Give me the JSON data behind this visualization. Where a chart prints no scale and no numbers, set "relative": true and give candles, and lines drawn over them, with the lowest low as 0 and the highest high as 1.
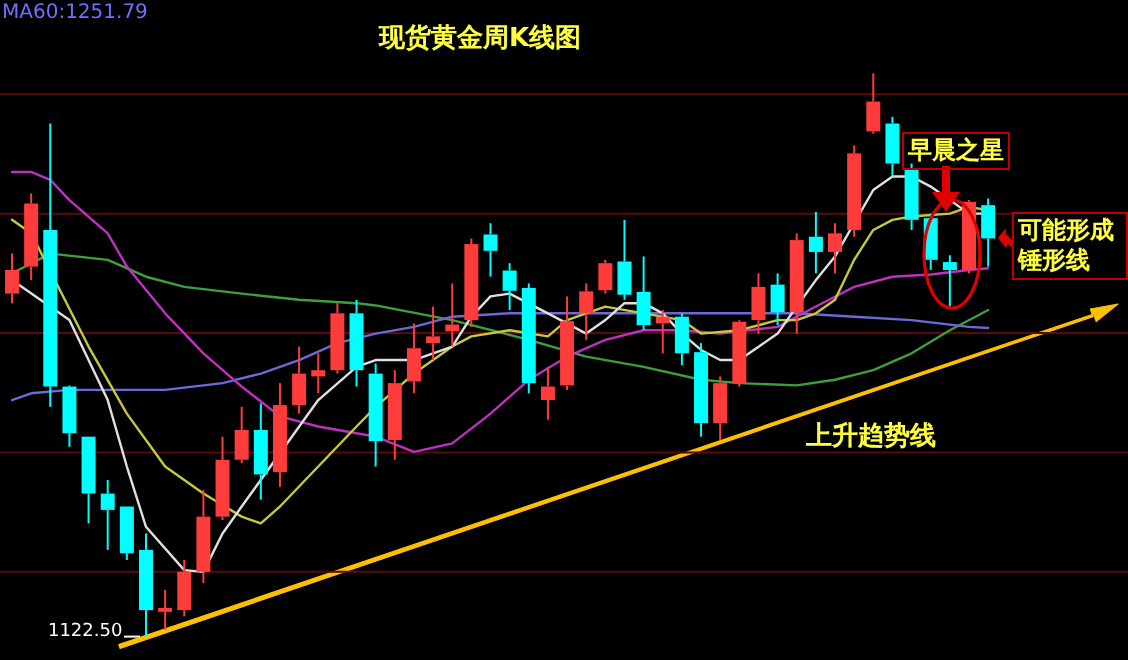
{
  "chart_data": {
    "type": "candlestick",
    "title": "现货黄金周K线图",
    "relative": true,
    "ref_lines": [
      {
        "axis": "y",
        "value": 0.963,
        "color": "#5a0a0a"
      },
      {
        "axis": "y",
        "value": 0.751,
        "color": "#5a0a0a"
      },
      {
        "axis": "y",
        "value": 0.539,
        "color": "#5a0a0a"
      },
      {
        "axis": "y",
        "value": 0.327,
        "color": "#5a0a0a"
      },
      {
        "axis": "y",
        "value": 0.115,
        "color": "#5a0a0a"
      }
    ],
    "categories": [
      null,
      null,
      null,
      null,
      null,
      null,
      null,
      null,
      null,
      null,
      null,
      null,
      null,
      null,
      null,
      null,
      null,
      null,
      null,
      null,
      null,
      null,
      null,
      null,
      null,
      null,
      null,
      null,
      null,
      null,
      null,
      null,
      null,
      null,
      null,
      null,
      null,
      null,
      null,
      null,
      null,
      null,
      null,
      null,
      null,
      null,
      null,
      null,
      null,
      null,
      null,
      null
    ],
    "ohlc": [
      [
        0.609,
        0.68,
        0.592,
        0.651
      ],
      [
        0.657,
        0.787,
        0.633,
        0.769
      ],
      [
        0.722,
        0.911,
        0.408,
        0.444
      ],
      [
        0.444,
        0.446,
        0.337,
        0.361
      ],
      [
        0.355,
        0.355,
        0.201,
        0.254
      ],
      [
        0.254,
        0.278,
        0.154,
        0.225
      ],
      [
        0.231,
        0.231,
        0.136,
        0.148
      ],
      [
        0.154,
        0.183,
        0,
        0.047
      ],
      [
        0.044,
        0.083,
        0.012,
        0.051
      ],
      [
        0.047,
        0.136,
        0.036,
        0.115
      ],
      [
        0.115,
        0.26,
        0.095,
        0.213
      ],
      [
        0.213,
        0.355,
        0.207,
        0.314
      ],
      [
        0.314,
        0.408,
        0.308,
        0.367
      ],
      [
        0.367,
        0.414,
        0.243,
        0.288
      ],
      [
        0.292,
        0.45,
        0.266,
        0.411
      ],
      [
        0.411,
        0.515,
        0.396,
        0.467
      ],
      [
        0.462,
        0.503,
        0.432,
        0.473
      ],
      [
        0.473,
        0.592,
        0.467,
        0.574
      ],
      [
        0.574,
        0.598,
        0.444,
        0.473
      ],
      [
        0.467,
        0.485,
        0.302,
        0.347
      ],
      [
        0.349,
        0.473,
        0.314,
        0.45
      ],
      [
        0.453,
        0.556,
        0.432,
        0.512
      ],
      [
        0.521,
        0.586,
        0.491,
        0.533
      ],
      [
        0.542,
        0.627,
        0.515,
        0.554
      ],
      [
        0.562,
        0.707,
        0.55,
        0.697
      ],
      [
        0.714,
        0.734,
        0.639,
        0.685
      ],
      [
        0.65,
        0.663,
        0.58,
        0.614
      ],
      [
        0.619,
        0.627,
        0.432,
        0.45
      ],
      [
        0.42,
        0.479,
        0.385,
        0.444
      ],
      [
        0.446,
        0.604,
        0.438,
        0.56
      ],
      [
        0.574,
        0.627,
        0.527,
        0.613
      ],
      [
        0.615,
        0.669,
        0.609,
        0.663
      ],
      [
        0.666,
        0.74,
        0.598,
        0.607
      ],
      [
        0.612,
        0.675,
        0.544,
        0.553
      ],
      [
        0.556,
        0.58,
        0.503,
        0.568
      ],
      [
        0.568,
        0.574,
        0.482,
        0.503
      ],
      [
        0.505,
        0.521,
        0.355,
        0.379
      ],
      [
        0.379,
        0.462,
        0.349,
        0.45
      ],
      [
        0.45,
        0.562,
        0.444,
        0.559
      ],
      [
        0.562,
        0.645,
        0.538,
        0.621
      ],
      [
        0.625,
        0.645,
        0.553,
        0.576
      ],
      [
        0.576,
        0.716,
        0.538,
        0.704
      ],
      [
        0.71,
        0.754,
        0.645,
        0.683
      ],
      [
        0.683,
        0.734,
        0.645,
        0.716
      ],
      [
        0.722,
        0.872,
        0.71,
        0.858
      ],
      [
        0.897,
        1.0,
        0.893,
        0.95
      ],
      [
        0.911,
        0.923,
        0.817,
        0.84
      ],
      [
        0.831,
        0.84,
        0.722,
        0.74
      ],
      [
        0.743,
        0.751,
        0.651,
        0.669
      ],
      [
        0.665,
        0.677,
        0.586,
        0.651
      ],
      [
        0.651,
        0.775,
        0.645,
        0.772
      ],
      [
        0.766,
        0.778,
        0.657,
        0.707
      ]
    ],
    "colors": [
      "#ff3c3c",
      "#ff3c3c",
      "#00ffff",
      "#00ffff",
      "#00ffff",
      "#00ffff",
      "#00ffff",
      "#00ffff",
      "#ff3c3c",
      "#ff3c3c",
      "#ff3c3c",
      "#ff3c3c",
      "#ff3c3c",
      "#00ffff",
      "#ff3c3c",
      "#ff3c3c",
      "#ff3c3c",
      "#ff3c3c",
      "#00ffff",
      "#00ffff",
      "#ff3c3c",
      "#ff3c3c",
      "#ff3c3c",
      "#ff3c3c",
      "#ff3c3c",
      "#00ffff",
      "#00ffff",
      "#00ffff",
      "#ff3c3c",
      "#ff3c3c",
      "#ff3c3c",
      "#ff3c3c",
      "#00ffff",
      "#00ffff",
      "#ff3c3c",
      "#00ffff",
      "#00ffff",
      "#ff3c3c",
      "#ff3c3c",
      "#ff3c3c",
      "#00ffff",
      "#ff3c3c",
      "#00ffff",
      "#ff3c3c",
      "#ff3c3c",
      "#ff3c3c",
      "#00ffff",
      "#00ffff",
      "#00ffff",
      "#00ffff",
      "#ff3c3c",
      "#00ffff"
    ],
    "series": [
      {
        "type": "line",
        "color": "#3f9f3f",
        "values": [
          0.645,
          null,
          0.68,
          null,
          null,
          0.669,
          null,
          0.639,
          null,
          0.621,
          null,
          null,
          0.609,
          null,
          null,
          0.598,
          null,
          null,
          0.592,
          0.588,
          null,
          null,
          null,
          0.562,
          null,
          null,
          null,
          0.527,
          null,
          null,
          0.497,
          null,
          null,
          0.479,
          null,
          null,
          0.456,
          null,
          0.45,
          null,
          null,
          0.446,
          null,
          0.456,
          null,
          0.473,
          null,
          0.503,
          null,
          0.544,
          null,
          0.58
        ]
      },
      {
        "type": "line",
        "color": "#6a6ad8",
        "values": [
          0.42,
          0.432,
          null,
          0.438,
          null,
          null,
          0.438,
          null,
          0.438,
          null,
          null,
          0.45,
          null,
          0.467,
          null,
          0.491,
          null,
          0.521,
          null,
          0.538,
          null,
          0.55,
          null,
          0.568,
          null,
          null,
          0.574,
          null,
          null,
          0.574,
          null,
          null,
          0.574,
          null,
          null,
          0.574,
          null,
          null,
          0.574,
          null,
          null,
          0.574,
          null,
          null,
          0.568,
          null,
          null,
          0.562,
          null,
          null,
          0.55,
          0.548
        ]
      },
      {
        "type": "line",
        "color": "#c030c0",
        "values": [
          0.825,
          0.825,
          0.811,
          0.775,
          null,
          0.716,
          0.657,
          null,
          0.574,
          null,
          0.503,
          null,
          0.444,
          null,
          0.391,
          null,
          0.373,
          null,
          0.361,
          0.355,
          null,
          0.328,
          null,
          0.343,
          null,
          0.396,
          null,
          0.456,
          null,
          0.497,
          null,
          0.527,
          null,
          0.544,
          null,
          0.544,
          null,
          0.538,
          0.542,
          null,
          0.55,
          null,
          0.586,
          null,
          0.621,
          null,
          0.639,
          null,
          0.643,
          null,
          0.651,
          0.654
        ]
      },
      {
        "type": "line",
        "color": "#c8c83c",
        "values": [
          0.74,
          0.716,
          null,
          null,
          0.515,
          null,
          0.396,
          null,
          0.302,
          null,
          0.254,
          null,
          0.213,
          0.201,
          0.231,
          null,
          0.302,
          null,
          0.373,
          0.408,
          null,
          0.467,
          null,
          0.515,
          0.533,
          null,
          0.544,
          null,
          0.533,
          0.562,
          null,
          0.586,
          null,
          null,
          null,
          0.562,
          0.538,
          null,
          0.544,
          null,
          0.562,
          0.562,
          0.574,
          0.598,
          0.669,
          0.722,
          0.74,
          0.746,
          null,
          0.751,
          0.763,
          0.757
        ]
      },
      {
        "type": "line",
        "color": "#e0e0e0",
        "values": [
          0.633,
          null,
          null,
          0.562,
          null,
          0.42,
          0.302,
          0.195,
          null,
          0.118,
          0.115,
          0.183,
          0.231,
          null,
          null,
          null,
          0.42,
          null,
          0.479,
          0.491,
          null,
          0.491,
          null,
          0.515,
          0.568,
          0.604,
          0.609,
          null,
          0.574,
          null,
          0.538,
          0.562,
          0.592,
          0.592,
          0.574,
          0.538,
          0.509,
          0.491,
          0.491,
          null,
          0.538,
          0.586,
          0.633,
          0.675,
          null,
          0.793,
          0.817,
          0.817,
          0.799,
          null,
          0.751,
          0.751
        ]
      }
    ],
    "annotations": [
      "MA60:1251.79",
      "1122.50",
      "早晨之星",
      "可能形成锤形线",
      "上升趋势线"
    ]
  }
}
